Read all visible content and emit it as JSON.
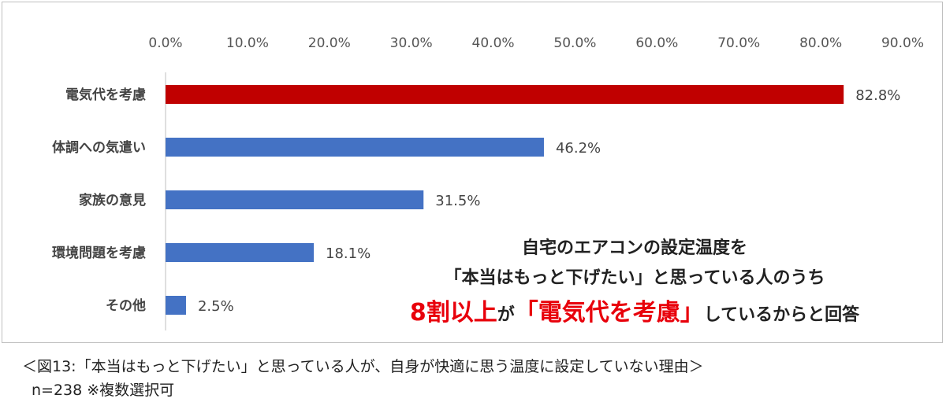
{
  "chart_data": {
    "type": "bar",
    "orientation": "horizontal",
    "categories": [
      "電気代を考慮",
      "体調への気遣い",
      "家族の意見",
      "環境問題を考慮",
      "その他"
    ],
    "values": [
      82.8,
      46.2,
      31.5,
      18.1,
      2.5
    ],
    "value_labels": [
      "82.8%",
      "46.2%",
      "31.5%",
      "18.1%",
      "2.5%"
    ],
    "xlim": [
      0,
      90
    ],
    "xticks": [
      "0.0%",
      "10.0%",
      "20.0%",
      "30.0%",
      "40.0%",
      "50.0%",
      "60.0%",
      "70.0%",
      "80.0%",
      "90.0%"
    ],
    "axis_position": "top",
    "grid": false,
    "colors": {
      "highlight": "#c00000",
      "default": "#4472c4"
    }
  },
  "annotation": {
    "line1": "自宅のエアコンの設定温度を",
    "line2": "「本当はもっと下げたい」と思っている人のうち",
    "line3_red_a": "8割以上",
    "line3_black_a": "が",
    "line3_red_b": "「電気代を考慮」",
    "line3_black_b": "しているからと回答"
  },
  "caption": {
    "line1": "＜図13:「本当はもっと下げたい」と思っている人が、自身が快適に思う温度に設定していない理由＞",
    "line2": "n=238 ※複数選択可"
  }
}
